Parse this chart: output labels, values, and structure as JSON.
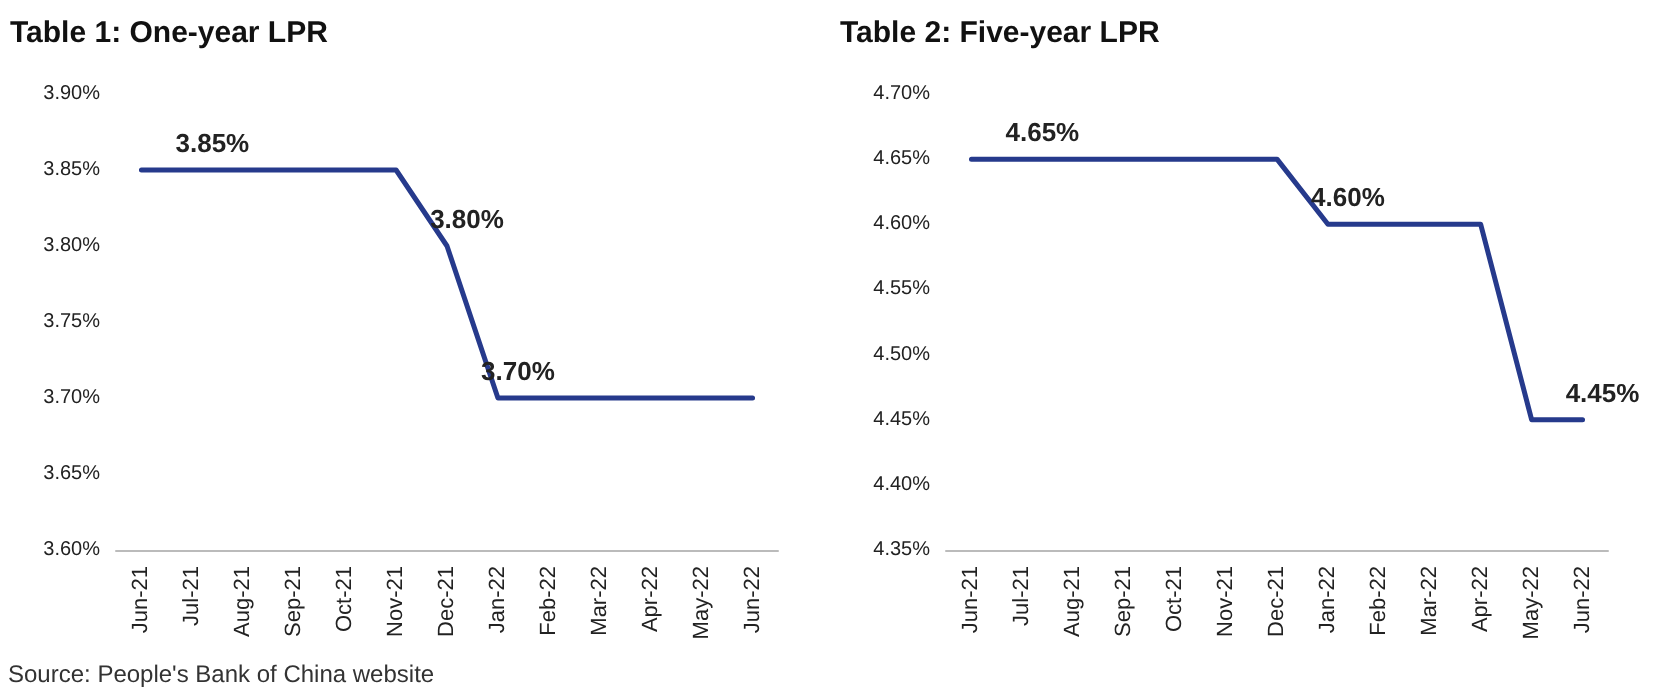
{
  "chart_data": [
    {
      "type": "line",
      "title": "Table 1: One-year LPR",
      "categories": [
        "Jun-21",
        "Jul-21",
        "Aug-21",
        "Sep-21",
        "Oct-21",
        "Nov-21",
        "Dec-21",
        "Jan-22",
        "Feb-22",
        "Mar-22",
        "Apr-22",
        "May-22",
        "Jun-22"
      ],
      "series": [
        {
          "color": "#263a8c",
          "values": [
            3.85,
            3.85,
            3.85,
            3.85,
            3.85,
            3.85,
            3.8,
            3.7,
            3.7,
            3.7,
            3.7,
            3.7,
            3.7
          ],
          "value_labels": [
            null,
            "3.85%",
            null,
            null,
            null,
            null,
            "3.80%",
            "3.70%",
            null,
            null,
            null,
            null,
            null
          ]
        }
      ],
      "ylim": [
        3.6,
        3.9
      ],
      "yticks": [
        {
          "value": 3.6,
          "label": "3.60%"
        },
        {
          "value": 3.65,
          "label": "3.65%"
        },
        {
          "value": 3.7,
          "label": "3.70%"
        },
        {
          "value": 3.75,
          "label": "3.75%"
        },
        {
          "value": 3.8,
          "label": "3.80%"
        },
        {
          "value": 3.85,
          "label": "3.85%"
        },
        {
          "value": 3.9,
          "label": "3.90%"
        }
      ],
      "grid": false,
      "marker": "none",
      "line_style": "solid",
      "annotations": [
        "Source: People's Bank of China website"
      ]
    },
    {
      "type": "line",
      "title": "Table 2: Five-year LPR",
      "categories": [
        "Jun-21",
        "Jul-21",
        "Aug-21",
        "Sep-21",
        "Oct-21",
        "Nov-21",
        "Dec-21",
        "Jan-22",
        "Feb-22",
        "Mar-22",
        "Apr-22",
        "May-22",
        "Jun-22"
      ],
      "series": [
        {
          "color": "#263a8c",
          "values": [
            4.65,
            4.65,
            4.65,
            4.65,
            4.65,
            4.65,
            4.65,
            4.6,
            4.6,
            4.6,
            4.6,
            4.45,
            4.45
          ],
          "value_labels": [
            null,
            "4.65%",
            null,
            null,
            null,
            null,
            null,
            "4.60%",
            null,
            null,
            null,
            null,
            "4.45%"
          ]
        }
      ],
      "ylim": [
        4.35,
        4.7
      ],
      "yticks": [
        {
          "value": 4.35,
          "label": "4.35%"
        },
        {
          "value": 4.4,
          "label": "4.40%"
        },
        {
          "value": 4.45,
          "label": "4.45%"
        },
        {
          "value": 4.5,
          "label": "4.50%"
        },
        {
          "value": 4.55,
          "label": "4.55%"
        },
        {
          "value": 4.6,
          "label": "4.60%"
        },
        {
          "value": 4.65,
          "label": "4.65%"
        },
        {
          "value": 4.7,
          "label": "4.70%"
        }
      ],
      "grid": false,
      "marker": "none",
      "line_style": "solid"
    }
  ]
}
